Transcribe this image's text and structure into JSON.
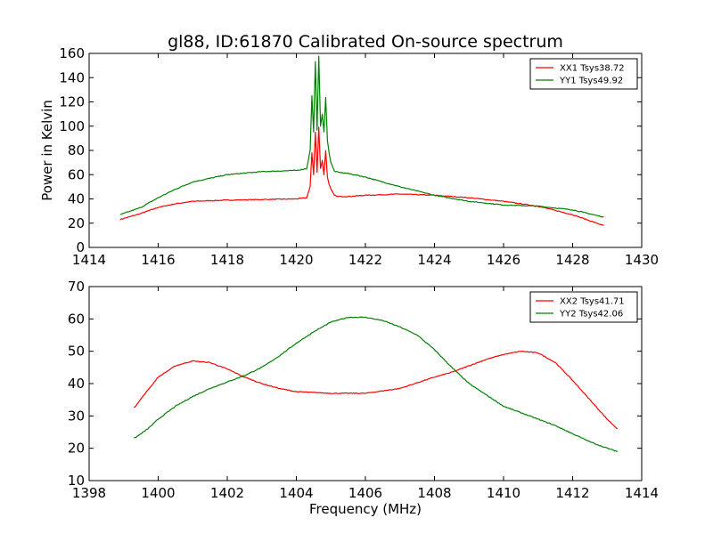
{
  "figure": {
    "title": "gl88, ID:61870 Calibrated On-source spectrum",
    "xlabel": "Frequency (MHz)",
    "ylabel_top": "Power in Kelvin"
  },
  "colors": {
    "xx": "#ff0000",
    "yy": "#008000"
  },
  "chart_data": [
    {
      "type": "line",
      "panel": "top",
      "title": "gl88, ID:61870 Calibrated On-source spectrum",
      "xlabel": "",
      "ylabel": "Power in Kelvin",
      "xlim": [
        1414,
        1430
      ],
      "ylim": [
        0,
        160
      ],
      "xticks": [
        "1414",
        "1416",
        "1418",
        "1420",
        "1422",
        "1424",
        "1426",
        "1428",
        "1430"
      ],
      "yticks": [
        "0",
        "20",
        "40",
        "60",
        "80",
        "100",
        "120",
        "140",
        "160"
      ],
      "legend_position": "top-right",
      "grid": false,
      "series": [
        {
          "name": "XX1 Tsys38.72",
          "color": "#ff0000",
          "x": [
            1414.9,
            1415.5,
            1416,
            1416.5,
            1417,
            1418,
            1419,
            1420,
            1420.3,
            1420.4,
            1420.45,
            1420.5,
            1420.55,
            1420.6,
            1420.65,
            1420.7,
            1420.75,
            1420.8,
            1420.85,
            1420.9,
            1420.95,
            1421.0,
            1421.1,
            1421.2,
            1421.5,
            1422,
            1423,
            1424,
            1425,
            1426,
            1427,
            1428,
            1428.9
          ],
          "y": [
            23,
            28,
            33,
            36,
            38,
            39,
            39.5,
            40,
            41,
            50,
            78,
            60,
            95,
            62,
            99,
            65,
            72,
            60,
            80,
            58,
            52,
            48,
            43,
            42,
            42,
            43,
            44,
            43,
            41,
            38,
            34,
            27,
            18
          ]
        },
        {
          "name": "YY1 Tsys49.92",
          "color": "#008000",
          "x": [
            1414.9,
            1415.5,
            1416,
            1416.5,
            1417,
            1418,
            1419,
            1420,
            1420.3,
            1420.4,
            1420.45,
            1420.5,
            1420.55,
            1420.6,
            1420.65,
            1420.7,
            1420.75,
            1420.8,
            1420.85,
            1420.9,
            1420.95,
            1421.0,
            1421.1,
            1421.2,
            1421.5,
            1422,
            1423,
            1424,
            1425,
            1426,
            1427,
            1428,
            1428.9
          ],
          "y": [
            27,
            33,
            41,
            48,
            54,
            60,
            62.5,
            63.5,
            65,
            80,
            125,
            95,
            153,
            97,
            158,
            100,
            110,
            95,
            124,
            88,
            78,
            70,
            63,
            62,
            61,
            58,
            50,
            43,
            38,
            35,
            34,
            31,
            25
          ]
        }
      ]
    },
    {
      "type": "line",
      "panel": "bottom",
      "title": "",
      "xlabel": "Frequency (MHz)",
      "ylabel": "",
      "xlim": [
        1398,
        1414
      ],
      "ylim": [
        10,
        70
      ],
      "xticks": [
        "1398",
        "1400",
        "1402",
        "1404",
        "1406",
        "1408",
        "1410",
        "1412",
        "1414"
      ],
      "yticks": [
        "10",
        "20",
        "30",
        "40",
        "50",
        "60",
        "70"
      ],
      "legend_position": "top-right",
      "grid": false,
      "series": [
        {
          "name": "XX2 Tsys41.71",
          "color": "#ff0000",
          "x": [
            1399.3,
            1399.7,
            1400,
            1400.5,
            1401,
            1401.5,
            1402,
            1402.5,
            1403,
            1403.5,
            1404,
            1405,
            1406,
            1407,
            1408,
            1408.5,
            1409,
            1409.5,
            1410,
            1410.5,
            1411,
            1411.5,
            1412,
            1412.5,
            1413,
            1413.3
          ],
          "y": [
            32.5,
            38,
            42,
            45.5,
            47,
            46.5,
            44.5,
            42,
            40,
            38.5,
            37.5,
            37,
            37,
            38.5,
            42,
            43.5,
            45.5,
            47.5,
            49,
            50,
            49.5,
            46.5,
            41,
            35,
            29,
            26
          ]
        },
        {
          "name": "YY2 Tsys42.06",
          "color": "#008000",
          "x": [
            1399.3,
            1399.7,
            1400,
            1400.5,
            1401,
            1401.5,
            1402,
            1402.5,
            1403,
            1403.5,
            1404,
            1404.5,
            1405,
            1405.5,
            1406,
            1406.5,
            1407,
            1407.5,
            1408,
            1408.5,
            1409,
            1409.5,
            1410,
            1410.5,
            1411,
            1411.5,
            1412,
            1412.5,
            1413,
            1413.3
          ],
          "y": [
            23,
            26,
            29,
            33,
            36,
            38.5,
            40.5,
            42.5,
            45,
            48.5,
            52.5,
            56,
            59,
            60.5,
            60.5,
            59.5,
            57.5,
            55,
            50.5,
            45,
            40,
            36.5,
            33,
            31,
            29,
            27,
            24.5,
            22,
            20,
            19
          ]
        }
      ]
    }
  ]
}
